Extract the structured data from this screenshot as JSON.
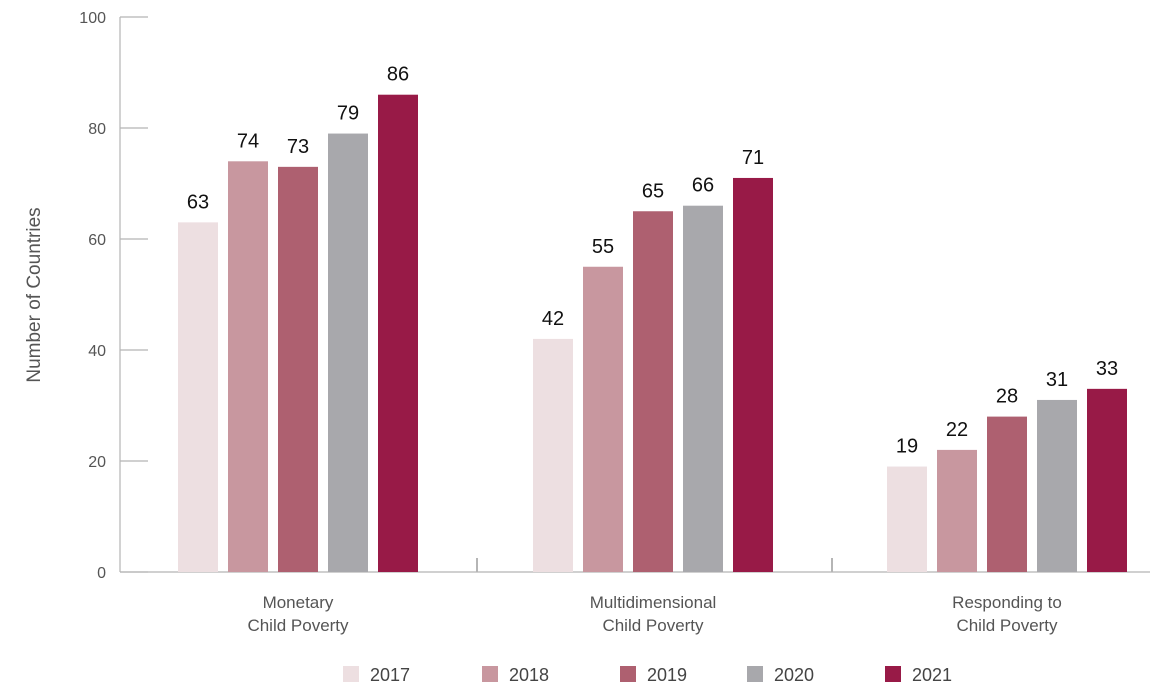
{
  "chart_data": {
    "type": "bar",
    "title": "",
    "xlabel": "",
    "ylabel": "Number of Countries",
    "ylim": [
      0,
      100
    ],
    "yticks": [
      0,
      20,
      40,
      60,
      80,
      100
    ],
    "grid": false,
    "legend_position": "bottom",
    "categories": [
      [
        "Monetary",
        "Child Poverty"
      ],
      [
        "Multidimensional",
        "Child Poverty"
      ],
      [
        "Responding to",
        "Child Poverty"
      ]
    ],
    "series": [
      {
        "name": "2017",
        "color": "#EDDFE1",
        "values": [
          63,
          42,
          19
        ]
      },
      {
        "name": "2018",
        "color": "#C8979F",
        "values": [
          74,
          55,
          22
        ]
      },
      {
        "name": "2019",
        "color": "#AE6070",
        "values": [
          73,
          65,
          28
        ]
      },
      {
        "name": "2020",
        "color": "#A8A8AC",
        "values": [
          79,
          66,
          31
        ]
      },
      {
        "name": "2021",
        "color": "#981A47",
        "values": [
          86,
          71,
          33
        ]
      }
    ]
  }
}
